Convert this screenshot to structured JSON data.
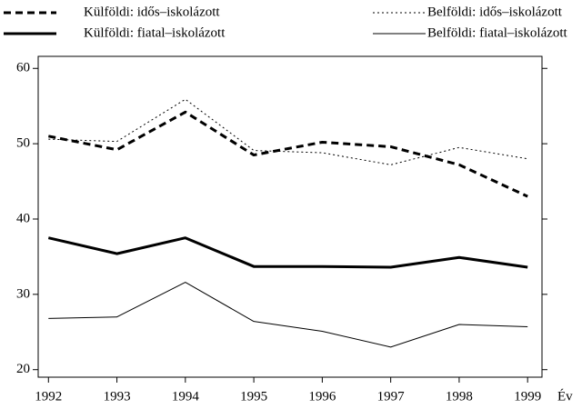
{
  "chart_data": {
    "type": "line",
    "x_label": "Év",
    "x": [
      1992,
      1993,
      1994,
      1995,
      1996,
      1997,
      1998,
      1999
    ],
    "xlim": [
      1991.85,
      1999.21
    ],
    "xticks": [
      1992,
      1993,
      1994,
      1995,
      1996,
      1997,
      1998,
      1999
    ],
    "ylim": [
      19,
      61.6
    ],
    "yticks": [
      20,
      30,
      40,
      50,
      60
    ],
    "grid": false,
    "legend": "top",
    "series": [
      {
        "name": "Külföldi: idős–iskolázott",
        "color": "#000000",
        "line_style": "dashed",
        "line_width": 3,
        "values": [
          51.0,
          49.2,
          54.2,
          48.5,
          50.2,
          49.6,
          47.2,
          43.0
        ]
      },
      {
        "name": "Belföldi: idős–iskolázott",
        "color": "#000000",
        "line_style": "dotted",
        "line_width": 1,
        "values": [
          50.6,
          50.3,
          55.9,
          49.1,
          48.8,
          47.2,
          49.5,
          48.0
        ]
      },
      {
        "name": "Külföldi: fiatal–iskolázott",
        "color": "#000000",
        "line_style": "solid",
        "line_width": 3,
        "values": [
          37.5,
          35.4,
          37.5,
          33.7,
          33.7,
          33.6,
          34.9,
          33.6
        ]
      },
      {
        "name": "Belföldi: fiatal–iskolázott",
        "color": "#000000",
        "line_style": "solid",
        "line_width": 1,
        "values": [
          26.8,
          27.0,
          31.6,
          26.4,
          25.1,
          23.0,
          26.0,
          25.7
        ]
      }
    ]
  }
}
